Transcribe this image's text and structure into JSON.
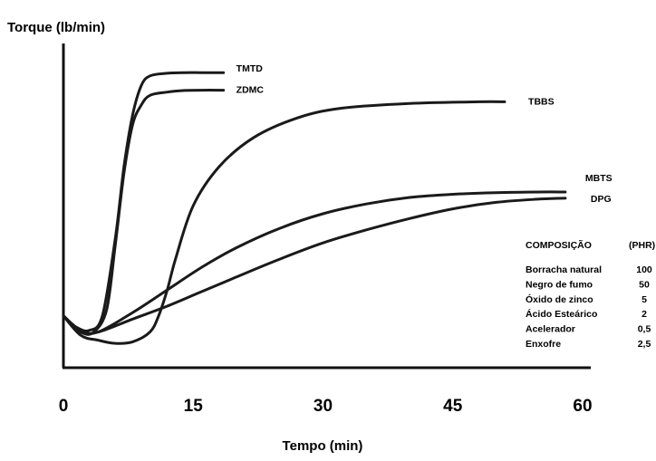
{
  "chart_data": {
    "type": "line",
    "ylabel": "Torque (lb/min)",
    "xlabel": "Tempo (min)",
    "xlim": [
      0,
      60
    ],
    "ylim": [
      0,
      100
    ],
    "xticks": [
      0,
      15,
      30,
      45,
      60
    ],
    "grid": false,
    "series": [
      {
        "name": "TMTD",
        "color": "#1a1a1a",
        "x": [
          0,
          1.5,
          3,
          4.5,
          6,
          7,
          8,
          9,
          10,
          12,
          14,
          16,
          18.5
        ],
        "y": [
          16,
          12.5,
          11.5,
          16,
          40,
          62,
          78,
          87,
          90,
          90.8,
          91,
          91,
          91
        ]
      },
      {
        "name": "ZDMC",
        "color": "#1a1a1a",
        "x": [
          0,
          2,
          3.5,
          5,
          6,
          7,
          8,
          9,
          10,
          12,
          14,
          16,
          18.5
        ],
        "y": [
          16,
          11,
          11,
          18,
          38,
          60,
          75,
          81,
          84,
          85,
          85.5,
          85.6,
          85.6
        ]
      },
      {
        "name": "TBBS",
        "color": "#1a1a1a",
        "x": [
          0,
          2,
          4,
          6,
          8,
          10,
          11,
          12,
          13,
          15,
          18,
          22,
          27,
          32,
          40,
          48,
          51
        ],
        "y": [
          16,
          10,
          8.5,
          7.5,
          8,
          11,
          16,
          24,
          34,
          50,
          62,
          71,
          77,
          80,
          81.5,
          82,
          82
        ]
      },
      {
        "name": "MBTS",
        "color": "#1a1a1a",
        "x": [
          0,
          2,
          4,
          8,
          12,
          16,
          20,
          25,
          30,
          35,
          40,
          45,
          50,
          55,
          58
        ],
        "y": [
          16,
          11.5,
          11,
          17,
          24,
          31,
          37,
          43,
          47.5,
          50.5,
          52.5,
          53.5,
          54,
          54.2,
          54.2
        ]
      },
      {
        "name": "DPG",
        "color": "#1a1a1a",
        "x": [
          0,
          2,
          4,
          8,
          12,
          16,
          20,
          25,
          30,
          35,
          40,
          45,
          50,
          55,
          58
        ],
        "y": [
          16,
          11,
          11,
          15,
          19,
          23.5,
          28,
          33.5,
          38.5,
          42.5,
          46,
          49,
          51,
          52,
          52.3
        ]
      }
    ],
    "composition": {
      "header_name": "COMPOSIÇÃO",
      "header_value": "(PHR)",
      "rows": [
        {
          "name": "Borracha natural",
          "value": "100"
        },
        {
          "name": "Negro de fumo",
          "value": "50"
        },
        {
          "name": "Óxido de zinco",
          "value": "5"
        },
        {
          "name": "Ácido Esteárico",
          "value": "2"
        },
        {
          "name": "Acelerador",
          "value": "0,5"
        },
        {
          "name": "Enxofre",
          "value": "2,5"
        }
      ]
    }
  }
}
